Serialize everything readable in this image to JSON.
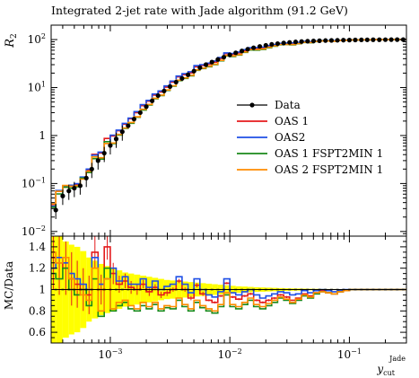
{
  "chart_data": {
    "type": "line",
    "title": "Integrated 2-jet rate with Jade algorithm (91.2 GeV)",
    "ylabel_main": "R",
    "ylabel_main_sub": "2",
    "ylabel_ratio": "MC/Data",
    "xlabel": "y",
    "xlabel_sub": "cut",
    "xlabel_sup": "Jade",
    "x_scale": "log",
    "xlim": [
      0.00032,
      0.3
    ],
    "main_y_scale": "log",
    "main_ylim": [
      0.008,
      200
    ],
    "ratio_ylim": [
      0.5,
      1.5
    ],
    "x_ticks": [
      {
        "value": 0.001,
        "base": "10",
        "exp": "−3"
      },
      {
        "value": 0.01,
        "base": "10",
        "exp": "−2"
      },
      {
        "value": 0.1,
        "base": "10",
        "exp": "−1"
      }
    ],
    "main_y_ticks": [
      {
        "value": 100,
        "base": "10",
        "exp": "2"
      },
      {
        "value": 10,
        "base": "10",
        "exp": "1"
      },
      {
        "value": 1,
        "label": "1"
      },
      {
        "value": 0.1,
        "base": "10",
        "exp": "−1"
      },
      {
        "value": 0.01,
        "base": "10",
        "exp": "−2"
      }
    ],
    "ratio_y_ticks": [
      "0.6",
      "0.8",
      "1",
      "1.2",
      "1.4"
    ],
    "legend_position": "right-middle",
    "data": {
      "name": "Data",
      "color": "#000000",
      "x": [
        0.00035,
        0.0004,
        0.00045,
        0.0005,
        0.00056,
        0.00063,
        0.0007,
        0.00079,
        0.00089,
        0.001,
        0.00112,
        0.00126,
        0.00141,
        0.00158,
        0.00178,
        0.002,
        0.00224,
        0.00251,
        0.00282,
        0.00316,
        0.00355,
        0.00398,
        0.00447,
        0.00501,
        0.00562,
        0.00631,
        0.00708,
        0.00794,
        0.00891,
        0.01,
        0.0112,
        0.0126,
        0.0141,
        0.0158,
        0.0178,
        0.02,
        0.0224,
        0.0251,
        0.0282,
        0.0316,
        0.0355,
        0.0398,
        0.0447,
        0.0501,
        0.0562,
        0.0631,
        0.0708,
        0.0794,
        0.0891,
        0.1,
        0.112,
        0.126,
        0.141,
        0.158,
        0.178,
        0.2,
        0.224,
        0.251,
        0.282
      ],
      "y": [
        0.028,
        0.055,
        0.07,
        0.08,
        0.09,
        0.13,
        0.2,
        0.3,
        0.43,
        0.62,
        0.85,
        1.2,
        1.6,
        2.2,
        3.0,
        4.0,
        5.3,
        6.8,
        8.5,
        10.5,
        13,
        15.5,
        18.5,
        22,
        26,
        30,
        34,
        38.5,
        43,
        48,
        53,
        58,
        63,
        67.5,
        72,
        76,
        79.5,
        82.5,
        85,
        87.5,
        89.5,
        91,
        92.5,
        93.5,
        94.5,
        95.5,
        96.2,
        96.8,
        97.3,
        97.8,
        98.2,
        98.6,
        98.9,
        99.2,
        99.4,
        99.6,
        99.7,
        99.85,
        99.95
      ]
    },
    "edges": [
      0.00032,
      0.00035,
      0.0004,
      0.00045,
      0.0005,
      0.00056,
      0.00063,
      0.0007,
      0.00079,
      0.00089,
      0.001,
      0.00112,
      0.00126,
      0.00141,
      0.00158,
      0.00178,
      0.002,
      0.00224,
      0.00251,
      0.00282,
      0.00316,
      0.00355,
      0.00398,
      0.00447,
      0.00501,
      0.00562,
      0.00631,
      0.00708,
      0.00794,
      0.00891,
      0.01,
      0.0112,
      0.0126,
      0.0141,
      0.0158,
      0.0178,
      0.02,
      0.0224,
      0.0251,
      0.0282,
      0.0316,
      0.0355,
      0.0398,
      0.0447,
      0.0501,
      0.0562,
      0.0631,
      0.0708,
      0.0794,
      0.0891,
      0.1,
      0.112,
      0.126,
      0.141,
      0.158,
      0.178,
      0.2,
      0.224,
      0.251,
      0.3
    ],
    "band_ratio_err": [
      0.5,
      0.5,
      0.45,
      0.42,
      0.4,
      0.36,
      0.3,
      0.27,
      0.24,
      0.22,
      0.2,
      0.18,
      0.16,
      0.15,
      0.14,
      0.13,
      0.12,
      0.11,
      0.1,
      0.09,
      0.085,
      0.08,
      0.075,
      0.07,
      0.065,
      0.06,
      0.055,
      0.05,
      0.045,
      0.04,
      0.035,
      0.03,
      0.028,
      0.025,
      0.022,
      0.02,
      0.018,
      0.016,
      0.014,
      0.012,
      0.011,
      0.01,
      0.009,
      0.008,
      0.007,
      0.006,
      0.005,
      0.005,
      0.004,
      0.004,
      0.003,
      0.003,
      0.003,
      0.002,
      0.002,
      0.002,
      0.002,
      0.002,
      0.002
    ],
    "series": [
      {
        "name": "OAS 1",
        "color": "#e41a1c",
        "ratio": [
          1.3,
          1.25,
          1.2,
          1.1,
          1.05,
          1.0,
          0.95,
          1.35,
          1.0,
          1.4,
          1.15,
          1.05,
          1.08,
          1.02,
          1.0,
          1.05,
          0.98,
          1.02,
          0.95,
          0.97,
          1.0,
          1.08,
          1.0,
          0.92,
          1.04,
          0.96,
          0.9,
          0.88,
          0.94,
          1.06,
          0.93,
          0.91,
          0.94,
          0.96,
          0.9,
          0.88,
          0.9,
          0.92,
          0.95,
          0.93,
          0.9,
          0.92,
          0.96,
          0.94,
          0.97,
          0.99,
          0.97,
          0.96,
          0.98,
          0.99,
          1.0,
          1.0,
          1.0,
          1.0,
          1.0,
          1.0,
          1.0,
          1.0,
          1.0
        ],
        "ratio_err": [
          0.3,
          0.3,
          0.25,
          0.25,
          0.22,
          0.2,
          0.18,
          0.15,
          0.14,
          0.12,
          0.1,
          0.08,
          0.07,
          0.06,
          0.05,
          0.04,
          0.04,
          0.03,
          0.03,
          0.03,
          0.02,
          0.02,
          0.02,
          0.02,
          0.02,
          0.02,
          0.01,
          0.01,
          0.01,
          0.01,
          0.01,
          0.01,
          0.01,
          0.01,
          0.01,
          0.01,
          0.01,
          0.01,
          0.01,
          0.01,
          0.005,
          0.005,
          0.005,
          0.005,
          0.005,
          0.005,
          0.005,
          0.005,
          0.005,
          0.005,
          0.005,
          0.005,
          0.005,
          0.005,
          0.005,
          0.005,
          0.005,
          0.005,
          0.005
        ]
      },
      {
        "name": "OAS2",
        "color": "#1f4fe6",
        "ratio": [
          1.2,
          1.3,
          1.25,
          1.15,
          1.1,
          1.05,
          1.0,
          1.3,
          1.05,
          1.1,
          1.2,
          1.08,
          1.12,
          1.05,
          1.05,
          1.1,
          1.02,
          1.08,
          1.0,
          1.03,
          1.05,
          1.12,
          1.05,
          0.97,
          1.1,
          1.0,
          0.95,
          0.93,
          0.98,
          1.1,
          0.97,
          0.95,
          0.98,
          1.0,
          0.95,
          0.92,
          0.94,
          0.96,
          0.98,
          0.97,
          0.95,
          0.96,
          0.99,
          0.97,
          0.99,
          1.0,
          0.99,
          0.98,
          0.99,
          1.0,
          1.0,
          1.0,
          1.0,
          1.0,
          1.0,
          1.0,
          1.0,
          1.0,
          1.0
        ]
      },
      {
        "name": "OAS 1 FSPT2MIN 1",
        "color": "#1a8a1a",
        "ratio": [
          1.15,
          1.1,
          1.2,
          1.0,
          0.95,
          1.0,
          0.85,
          1.1,
          0.75,
          1.2,
          0.8,
          0.85,
          0.88,
          0.82,
          0.8,
          0.85,
          0.82,
          0.86,
          0.8,
          0.83,
          0.82,
          0.9,
          0.84,
          0.8,
          0.88,
          0.83,
          0.8,
          0.78,
          0.84,
          0.95,
          0.84,
          0.82,
          0.86,
          0.9,
          0.84,
          0.82,
          0.85,
          0.88,
          0.92,
          0.9,
          0.87,
          0.9,
          0.94,
          0.92,
          0.96,
          0.98,
          0.97,
          0.96,
          0.98,
          0.99,
          1.0,
          1.0,
          1.0,
          1.0,
          1.0,
          1.0,
          1.0,
          1.0,
          1.0
        ]
      },
      {
        "name": "OAS 2 FSPT2MIN 1",
        "color": "#ff8c00",
        "ratio": [
          1.35,
          1.25,
          1.3,
          1.1,
          1.0,
          0.95,
          0.9,
          1.2,
          0.8,
          1.1,
          0.82,
          0.88,
          0.9,
          0.85,
          0.82,
          0.88,
          0.84,
          0.88,
          0.82,
          0.85,
          0.84,
          0.92,
          0.86,
          0.82,
          0.9,
          0.85,
          0.82,
          0.8,
          0.86,
          0.97,
          0.86,
          0.84,
          0.88,
          0.92,
          0.86,
          0.84,
          0.87,
          0.9,
          0.93,
          0.91,
          0.88,
          0.91,
          0.95,
          0.93,
          0.97,
          0.98,
          0.97,
          0.96,
          0.98,
          0.99,
          1.0,
          1.0,
          1.0,
          1.0,
          1.0,
          1.0,
          1.0,
          1.0,
          1.0
        ]
      }
    ]
  }
}
